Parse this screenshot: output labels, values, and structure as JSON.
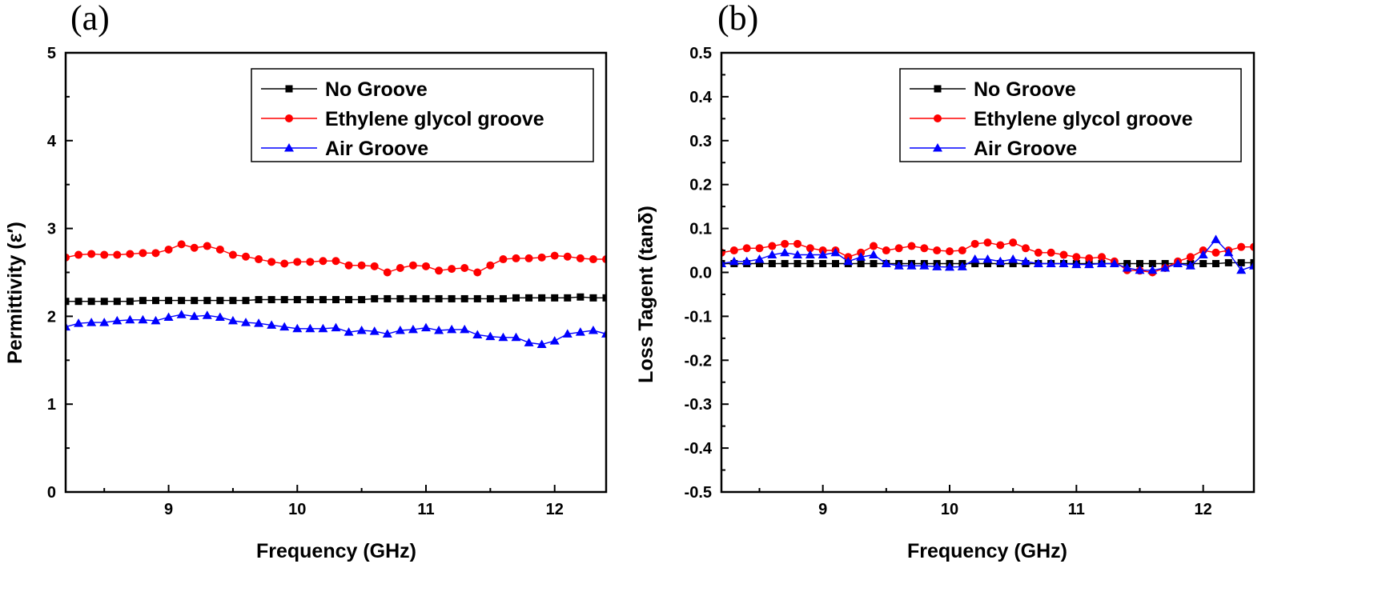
{
  "chart_data": [
    {
      "type": "line",
      "panel_label": "(a)",
      "title": "",
      "xlabel": "Frequency (GHz)",
      "ylabel": "Permittivity (ε′)",
      "xlim": [
        8.2,
        12.4
      ],
      "ylim": [
        0,
        5
      ],
      "xticks": [
        9,
        10,
        11,
        12
      ],
      "yticks": [
        0,
        1,
        2,
        3,
        4,
        5
      ],
      "grid": false,
      "legend_position": "top-right",
      "x": [
        8.2,
        8.3,
        8.4,
        8.5,
        8.6,
        8.7,
        8.8,
        8.9,
        9.0,
        9.1,
        9.2,
        9.3,
        9.4,
        9.5,
        9.6,
        9.7,
        9.8,
        9.9,
        10.0,
        10.1,
        10.2,
        10.3,
        10.4,
        10.5,
        10.6,
        10.7,
        10.8,
        10.9,
        11.0,
        11.1,
        11.2,
        11.3,
        11.4,
        11.5,
        11.6,
        11.7,
        11.8,
        11.9,
        12.0,
        12.1,
        12.2,
        12.3,
        12.4
      ],
      "series": [
        {
          "name": "No Groove",
          "color": "#000000",
          "marker": "square",
          "values": [
            2.17,
            2.17,
            2.17,
            2.17,
            2.17,
            2.17,
            2.18,
            2.18,
            2.18,
            2.18,
            2.18,
            2.18,
            2.18,
            2.18,
            2.18,
            2.19,
            2.19,
            2.19,
            2.19,
            2.19,
            2.19,
            2.19,
            2.19,
            2.19,
            2.2,
            2.2,
            2.2,
            2.2,
            2.2,
            2.2,
            2.2,
            2.2,
            2.2,
            2.2,
            2.2,
            2.21,
            2.21,
            2.21,
            2.21,
            2.21,
            2.22,
            2.21,
            2.21
          ]
        },
        {
          "name": "Ethylene glycol groove",
          "color": "#ff0000",
          "marker": "circle",
          "values": [
            2.67,
            2.7,
            2.71,
            2.7,
            2.7,
            2.71,
            2.72,
            2.72,
            2.76,
            2.82,
            2.78,
            2.8,
            2.76,
            2.7,
            2.68,
            2.65,
            2.62,
            2.6,
            2.62,
            2.62,
            2.63,
            2.63,
            2.58,
            2.58,
            2.57,
            2.5,
            2.55,
            2.58,
            2.57,
            2.52,
            2.54,
            2.55,
            2.5,
            2.58,
            2.65,
            2.66,
            2.66,
            2.67,
            2.69,
            2.68,
            2.66,
            2.65,
            2.65
          ]
        },
        {
          "name": "Air Groove",
          "color": "#0000ff",
          "marker": "triangle",
          "values": [
            1.88,
            1.92,
            1.93,
            1.93,
            1.95,
            1.96,
            1.96,
            1.95,
            1.99,
            2.02,
            2.0,
            2.01,
            1.99,
            1.95,
            1.93,
            1.92,
            1.9,
            1.88,
            1.86,
            1.86,
            1.86,
            1.87,
            1.82,
            1.84,
            1.83,
            1.8,
            1.84,
            1.85,
            1.87,
            1.84,
            1.85,
            1.85,
            1.79,
            1.77,
            1.76,
            1.76,
            1.7,
            1.68,
            1.72,
            1.8,
            1.82,
            1.84,
            1.8
          ]
        }
      ]
    },
    {
      "type": "line",
      "panel_label": "(b)",
      "title": "",
      "xlabel": "Frequency (GHz)",
      "ylabel": "Loss Tagent (tanδ)",
      "xlim": [
        8.2,
        12.4
      ],
      "ylim": [
        -0.5,
        0.5
      ],
      "xticks": [
        9,
        10,
        11,
        12
      ],
      "yticks": [
        -0.5,
        -0.4,
        -0.3,
        -0.2,
        -0.1,
        0.0,
        0.1,
        0.2,
        0.3,
        0.4,
        0.5
      ],
      "ytick_labels": [
        "-0.5",
        "-0.4",
        "-0.3",
        "-0.2",
        "-0.1",
        "0.0",
        "0.1",
        "0.2",
        "0.3",
        "0.4",
        "0.5"
      ],
      "grid": false,
      "legend_position": "top-right",
      "x": [
        8.2,
        8.3,
        8.4,
        8.5,
        8.6,
        8.7,
        8.8,
        8.9,
        9.0,
        9.1,
        9.2,
        9.3,
        9.4,
        9.5,
        9.6,
        9.7,
        9.8,
        9.9,
        10.0,
        10.1,
        10.2,
        10.3,
        10.4,
        10.5,
        10.6,
        10.7,
        10.8,
        10.9,
        11.0,
        11.1,
        11.2,
        11.3,
        11.4,
        11.5,
        11.6,
        11.7,
        11.8,
        11.9,
        12.0,
        12.1,
        12.2,
        12.3,
        12.4
      ],
      "series": [
        {
          "name": "No Groove",
          "color": "#000000",
          "marker": "square",
          "values": [
            0.02,
            0.02,
            0.02,
            0.02,
            0.02,
            0.02,
            0.02,
            0.02,
            0.02,
            0.02,
            0.02,
            0.02,
            0.02,
            0.02,
            0.02,
            0.02,
            0.02,
            0.02,
            0.02,
            0.02,
            0.02,
            0.02,
            0.02,
            0.02,
            0.02,
            0.02,
            0.02,
            0.02,
            0.02,
            0.02,
            0.02,
            0.02,
            0.02,
            0.02,
            0.02,
            0.02,
            0.02,
            0.02,
            0.02,
            0.02,
            0.022,
            0.022,
            0.022
          ]
        },
        {
          "name": "Ethylene glycol groove",
          "color": "#ff0000",
          "marker": "circle",
          "values": [
            0.045,
            0.05,
            0.055,
            0.055,
            0.06,
            0.065,
            0.065,
            0.055,
            0.05,
            0.05,
            0.035,
            0.045,
            0.06,
            0.05,
            0.055,
            0.06,
            0.055,
            0.05,
            0.048,
            0.05,
            0.065,
            0.068,
            0.062,
            0.068,
            0.055,
            0.045,
            0.045,
            0.04,
            0.035,
            0.032,
            0.035,
            0.025,
            0.005,
            0.004,
            0.0,
            0.01,
            0.025,
            0.035,
            0.05,
            0.045,
            0.05,
            0.058,
            0.058
          ]
        },
        {
          "name": "Air Groove",
          "color": "#0000ff",
          "marker": "triangle",
          "values": [
            0.02,
            0.025,
            0.025,
            0.03,
            0.04,
            0.045,
            0.04,
            0.04,
            0.04,
            0.045,
            0.025,
            0.035,
            0.04,
            0.02,
            0.015,
            0.015,
            0.015,
            0.013,
            0.012,
            0.013,
            0.03,
            0.03,
            0.025,
            0.03,
            0.025,
            0.02,
            0.02,
            0.02,
            0.018,
            0.018,
            0.02,
            0.02,
            0.01,
            0.005,
            0.005,
            0.01,
            0.02,
            0.015,
            0.04,
            0.075,
            0.045,
            0.005,
            0.015
          ]
        }
      ]
    }
  ]
}
